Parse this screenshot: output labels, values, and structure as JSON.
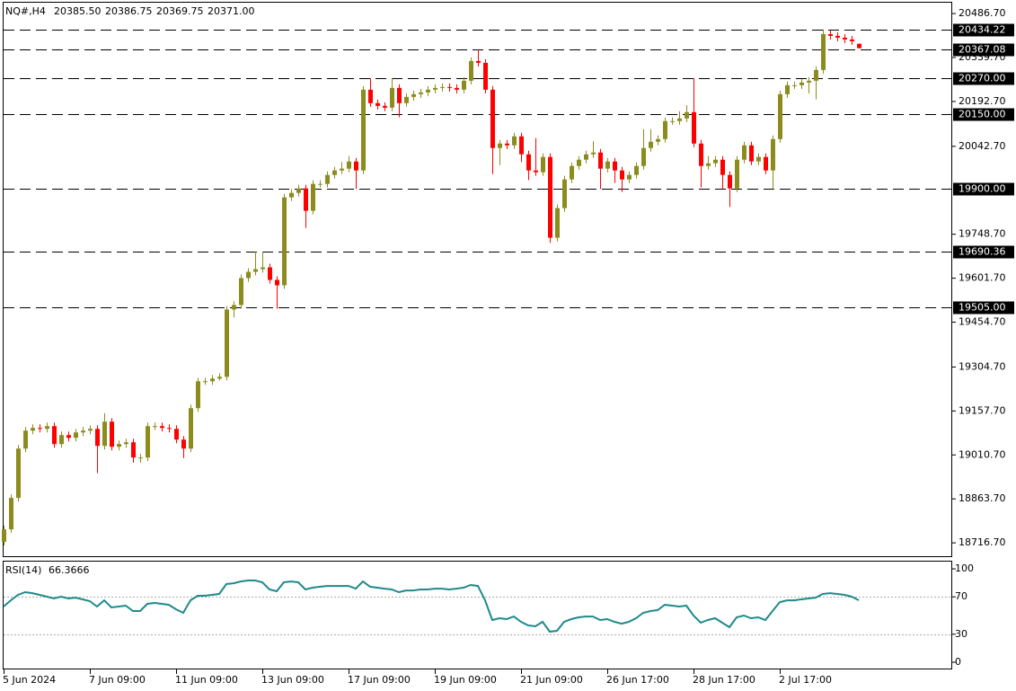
{
  "chart_data": [
    {
      "type": "candlestick",
      "title": "NQ#,H4",
      "header_labels": [
        "20385.50",
        "20386.75",
        "20369.75",
        "20371.00"
      ],
      "up_color": "#8c8c1e",
      "down_color": "#ff0000",
      "categories": [
        "5 Jun 2024",
        null,
        null,
        null,
        null,
        null,
        null,
        null,
        null,
        null,
        null,
        null,
        "7 Jun 09:00",
        null,
        null,
        null,
        null,
        null,
        null,
        null,
        null,
        null,
        null,
        null,
        "11 Jun 09:00",
        null,
        null,
        null,
        null,
        null,
        null,
        null,
        null,
        null,
        null,
        null,
        "13 Jun 09:00",
        null,
        null,
        null,
        null,
        null,
        null,
        null,
        null,
        null,
        null,
        null,
        "17 Jun 09:00",
        null,
        null,
        null,
        null,
        null,
        null,
        null,
        null,
        null,
        null,
        null,
        "19 Jun 09:00",
        null,
        null,
        null,
        null,
        null,
        null,
        null,
        null,
        null,
        null,
        null,
        "21 Jun 09:00",
        null,
        null,
        null,
        null,
        null,
        null,
        null,
        null,
        null,
        null,
        null,
        "26 Jun 17:00",
        null,
        null,
        null,
        null,
        null,
        null,
        null,
        null,
        null,
        null,
        null,
        "28 Jun 17:00",
        null,
        null,
        null,
        null,
        null,
        null,
        null,
        null,
        null,
        null,
        null,
        "2 Jul 17:00",
        null,
        null,
        null,
        null,
        null,
        null,
        null,
        null,
        null,
        null,
        null
      ],
      "open": [
        18720,
        18762,
        18867,
        19032,
        19092,
        19101,
        19098,
        19107,
        19047,
        19077,
        19068,
        19086,
        19092,
        19098,
        19041,
        19122,
        19038,
        19047,
        19053,
        19002,
        19002,
        19107,
        19107,
        19101,
        19098,
        19062,
        19032,
        19167,
        19257,
        19257,
        19266,
        19272,
        19497,
        19512,
        19602,
        19623,
        19632,
        19638,
        19596,
        19578,
        19872,
        19887,
        19902,
        19827,
        19917,
        19917,
        19947,
        19962,
        19968,
        19992,
        19962,
        20232,
        20187,
        20178,
        20172,
        20238,
        20187,
        20208,
        20217,
        20223,
        20232,
        20238,
        20241,
        20238,
        20232,
        20262,
        20328,
        20322,
        20232,
        20037,
        20052,
        20046,
        20076,
        20016,
        19962,
        19956,
        20007,
        19737,
        19836,
        19932,
        19977,
        19998,
        20016,
        20022,
        19968,
        19992,
        19962,
        19932,
        19947,
        19977,
        20037,
        20058,
        20067,
        20127,
        20127,
        20136,
        20157,
        20052,
        19977,
        19986,
        19998,
        19947,
        19902,
        19998,
        20046,
        19992,
        20007,
        19962,
        20067,
        20217,
        20247,
        20247,
        20256,
        20262,
        20298,
        20418,
        20412,
        20406,
        20400,
        20385.5
      ],
      "high": [
        18774,
        18879,
        19044,
        19104,
        19113,
        19113,
        19119,
        19119,
        19089,
        19089,
        19098,
        19104,
        19110,
        19110,
        19150,
        19134,
        19059,
        19065,
        19065,
        19014,
        19119,
        19119,
        19119,
        19113,
        19110,
        19074,
        19179,
        19269,
        19269,
        19278,
        19284,
        19509,
        19524,
        19614,
        19635,
        19690,
        19690,
        19650,
        19608,
        19884,
        19899,
        19914,
        19914,
        19929,
        19929,
        19959,
        19974,
        19990,
        20010,
        20004,
        20244,
        20270,
        20199,
        20190,
        20270,
        20250,
        20220,
        20229,
        20235,
        20244,
        20250,
        20253,
        20253,
        20250,
        20274,
        20340,
        20367,
        20334,
        20244,
        20064,
        20064,
        20088,
        20088,
        20028,
        20070,
        20019,
        20019,
        19848,
        19944,
        19989,
        20010,
        20028,
        20060,
        20034,
        20004,
        20004,
        19974,
        19959,
        19989,
        20100,
        20100,
        20079,
        20139,
        20139,
        20160,
        20180,
        20270,
        20064,
        20010,
        20010,
        20010,
        19959,
        20010,
        20058,
        20058,
        20019,
        20019,
        20079,
        20229,
        20259,
        20259,
        20268,
        20274,
        20310,
        20434,
        20430,
        20424,
        20418,
        20412,
        20386.75
      ],
      "low": [
        18708,
        18750,
        18855,
        19020,
        19080,
        19086,
        19086,
        19035,
        19035,
        19056,
        19056,
        19074,
        19080,
        18950,
        19029,
        19026,
        19026,
        19035,
        18985,
        18985,
        18990,
        19095,
        19089,
        19086,
        19050,
        19000,
        19020,
        19155,
        19245,
        19245,
        19260,
        19260,
        19470,
        19500,
        19590,
        19611,
        19620,
        19584,
        19500,
        19566,
        19860,
        19875,
        19770,
        19815,
        19905,
        19905,
        19935,
        19950,
        19956,
        19900,
        19950,
        20175,
        20166,
        20160,
        20160,
        20140,
        20175,
        20196,
        20205,
        20211,
        20220,
        20226,
        20226,
        20220,
        20220,
        20250,
        20310,
        20220,
        19950,
        19980,
        20034,
        20034,
        19990,
        19930,
        19944,
        19944,
        19720,
        19725,
        19824,
        19920,
        19965,
        19986,
        20004,
        19900,
        19956,
        19920,
        19890,
        19920,
        19935,
        19965,
        20025,
        20046,
        20055,
        20115,
        20115,
        20124,
        20040,
        19905,
        19965,
        19974,
        19900,
        19840,
        19890,
        19986,
        19980,
        19980,
        19950,
        19900,
        20055,
        20205,
        20235,
        20235,
        20220,
        20200,
        20286,
        20400,
        20394,
        20388,
        20382,
        20369.75
      ],
      "close": [
        18762,
        18867,
        19032,
        19092,
        19101,
        19098,
        19107,
        19047,
        19077,
        19068,
        19086,
        19092,
        19098,
        19041,
        19122,
        19038,
        19047,
        19053,
        19002,
        19002,
        19107,
        19107,
        19101,
        19098,
        19062,
        19032,
        19167,
        19257,
        19257,
        19266,
        19272,
        19497,
        19512,
        19602,
        19623,
        19632,
        19638,
        19596,
        19578,
        19872,
        19887,
        19902,
        19827,
        19917,
        19917,
        19947,
        19962,
        19968,
        19992,
        19962,
        20232,
        20187,
        20178,
        20172,
        20238,
        20187,
        20208,
        20217,
        20223,
        20232,
        20238,
        20241,
        20238,
        20232,
        20262,
        20328,
        20322,
        20232,
        20037,
        20052,
        20046,
        20076,
        20016,
        19962,
        19956,
        20007,
        19737,
        19836,
        19932,
        19977,
        19998,
        20016,
        20022,
        19968,
        19992,
        19962,
        19932,
        19947,
        19977,
        20037,
        20058,
        20067,
        20127,
        20127,
        20136,
        20157,
        20052,
        19977,
        19986,
        19998,
        19947,
        19902,
        19998,
        20046,
        19992,
        20007,
        19962,
        20067,
        20217,
        20247,
        20247,
        20256,
        20262,
        20298,
        20418,
        20412,
        20406,
        20400,
        20394,
        20371
      ],
      "ylim": [
        18669,
        20526
      ],
      "yticks": [
        {
          "value": 20486.7,
          "label": "20486.70"
        },
        {
          "value": 20339.7,
          "label": "20339.70"
        },
        {
          "value": 20192.7,
          "label": "20192.70"
        },
        {
          "value": 20042.7,
          "label": "20042.70"
        },
        {
          "value": 19748.7,
          "label": "19748.70"
        },
        {
          "value": 19601.7,
          "label": "19601.70"
        },
        {
          "value": 19454.7,
          "label": "19454.70"
        },
        {
          "value": 19304.7,
          "label": "19304.70"
        },
        {
          "value": 19157.7,
          "label": "19157.70"
        },
        {
          "value": 19010.7,
          "label": "19010.70"
        },
        {
          "value": 18863.7,
          "label": "18863.70"
        },
        {
          "value": 18716.7,
          "label": "18716.70"
        }
      ],
      "levels": [
        {
          "value": 20434.22,
          "label": "20434.22"
        },
        {
          "value": 20367.08,
          "label": "20367.08"
        },
        {
          "value": 20270,
          "label": "20270.00"
        },
        {
          "value": 20150,
          "label": "20150.00"
        },
        {
          "value": 19900,
          "label": "19900.00"
        },
        {
          "value": 19690.36,
          "label": "19690.36"
        },
        {
          "value": 19505,
          "label": "19505.00"
        }
      ]
    },
    {
      "type": "line",
      "title": "RSI(14)",
      "color": "#1f8a8a",
      "values": [
        59.6,
        66.3,
        72.1,
        75.0,
        74.0,
        72.1,
        70.2,
        68.3,
        70.2,
        68.3,
        69.2,
        67.3,
        65.4,
        59.6,
        66.3,
        58.7,
        59.6,
        60.6,
        54.8,
        54.8,
        62.5,
        63.5,
        62.5,
        61.5,
        56.7,
        52.9,
        66.3,
        71.2,
        71.2,
        72.1,
        73.1,
        83.7,
        84.6,
        86.5,
        87.5,
        87.5,
        85.6,
        77.9,
        76.0,
        85.6,
        86.5,
        85.6,
        77.9,
        79.8,
        80.8,
        81.7,
        81.7,
        81.7,
        81.7,
        78.8,
        86.5,
        80.8,
        79.8,
        78.8,
        77.9,
        75.0,
        76.9,
        76.9,
        77.9,
        77.9,
        78.8,
        78.8,
        77.9,
        78.8,
        79.8,
        82.7,
        81.7,
        66.3,
        45.2,
        47.1,
        46.2,
        49.0,
        43.3,
        39.4,
        38.5,
        43.3,
        32.7,
        33.7,
        43.3,
        46.2,
        48.1,
        49.0,
        49.0,
        45.2,
        46.2,
        43.3,
        41.3,
        43.3,
        47.1,
        52.9,
        54.8,
        55.8,
        61.5,
        60.6,
        59.6,
        60.6,
        50.0,
        42.3,
        45.2,
        47.1,
        42.3,
        37.5,
        48.1,
        50.0,
        47.1,
        48.1,
        45.2,
        54.8,
        64.4,
        66.3,
        66.3,
        67.3,
        68.3,
        69.2,
        73.1,
        74.0,
        73.1,
        72.1,
        70.2,
        66.3666
      ],
      "ylim": [
        -7.7,
        108.7
      ],
      "yticks": [
        100,
        70,
        30,
        0
      ],
      "levels": [
        70,
        30
      ]
    }
  ]
}
